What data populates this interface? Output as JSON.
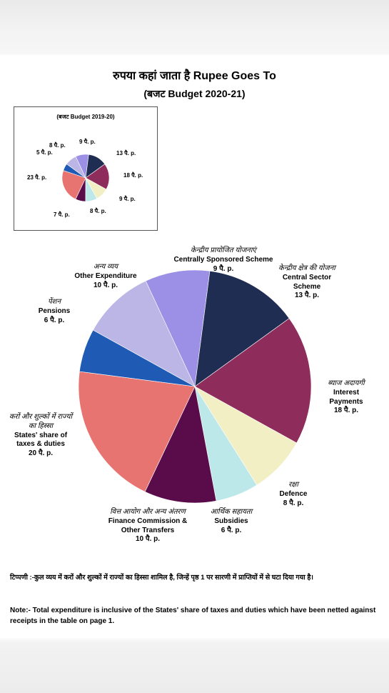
{
  "page": {
    "title": "रुपया कहां जाता है  Rupee Goes To",
    "subtitle": "(बजट Budget 2020-21)"
  },
  "inset": {
    "title": "(बजट Budget 2019-20)",
    "labels": [
      "8 पै. p.",
      "9 पै. p.",
      "5 पै. p.",
      "13 पै. p.",
      "18 पै. p.",
      "23 पै. p.",
      "9 पै. p.",
      "8 पै. p.",
      "7 पै. p."
    ]
  },
  "labels": {
    "css": {
      "hi": "केन्द्रीय प्रायोजित योजनाएं",
      "en": "Centrally Sponsored Scheme",
      "val": "9 पै. p."
    },
    "central": {
      "hi": "केन्द्रीय क्षेत्र की योजना",
      "en": "Central Sector Scheme",
      "val": "13 पै. p."
    },
    "interest": {
      "hi": "ब्याज अदायगी",
      "en": "Interest Payments",
      "val": "18 पै. p."
    },
    "defence": {
      "hi": "रक्षा",
      "en": "Defence",
      "val": "8 पै. p."
    },
    "subsidies": {
      "hi": "आर्थिक सहायता",
      "en": "Subsidies",
      "val": "6 पै. p."
    },
    "finance": {
      "hi": "वित्त आयोग और अन्य अंतरण",
      "en": "Finance Commission & Other Transfers",
      "val": "10 पै. p."
    },
    "states": {
      "hi": "करों और शुल्कों में राज्यों का हिस्सा",
      "en": "States' share of taxes & duties",
      "val": "20 पै. p."
    },
    "pensions": {
      "hi": "पेंशन",
      "en": "Pensions",
      "val": "6 पै. p."
    },
    "other": {
      "hi": "अन्य व्यय",
      "en": "Other Expenditure",
      "val": "10 पै. p."
    }
  },
  "notes": {
    "hindi": "टिप्पणी :-कुल व्यय में करों और शुल्कों में राज्यों का हिस्सा शामिल है, जिन्हें पृष्ठ 1 पर सारणी में प्राप्तियों में से घटा दिया गया है।",
    "english": "Note:-  Total expenditure is inclusive of the States' share of  taxes and duties which have been netted against receipts in the table on page 1."
  },
  "chart_data": [
    {
      "type": "pie",
      "title": "Rupee Goes To (Budget 2020-21)",
      "unit": "paise",
      "categories": [
        "Centrally Sponsored Scheme",
        "Central Sector Scheme",
        "Interest Payments",
        "Defence",
        "Subsidies",
        "Finance Commission & Other Transfers",
        "States' share of taxes & duties",
        "Pensions",
        "Other Expenditure"
      ],
      "values": [
        9,
        13,
        18,
        8,
        6,
        10,
        20,
        6,
        10
      ],
      "colors": [
        "#9b8fe6",
        "#1f2d52",
        "#8e2d5c",
        "#f2efc4",
        "#bde8ea",
        "#5a0c4a",
        "#e87472",
        "#1f5bb5",
        "#bcb6e6"
      ]
    },
    {
      "type": "pie",
      "title": "(बजट Budget 2019-20)",
      "unit": "paise",
      "values": [
        9,
        13,
        18,
        9,
        8,
        7,
        23,
        5,
        8
      ],
      "colors": [
        "#9b8fe6",
        "#1f2d52",
        "#8e2d5c",
        "#f2efc4",
        "#bde8ea",
        "#5a0c4a",
        "#e87472",
        "#1f5bb5",
        "#bcb6e6"
      ]
    }
  ]
}
